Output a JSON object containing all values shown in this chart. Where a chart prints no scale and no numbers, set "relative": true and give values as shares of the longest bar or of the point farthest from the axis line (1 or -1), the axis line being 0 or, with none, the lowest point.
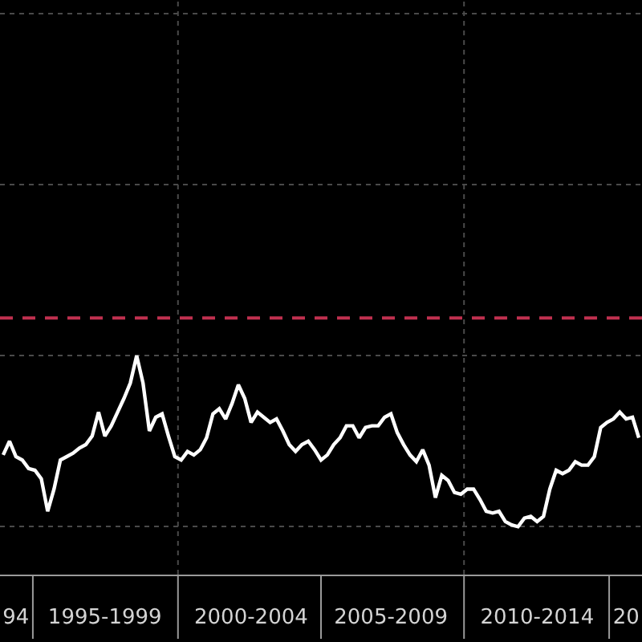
{
  "chart_data": {
    "type": "line",
    "relative": true,
    "categories": [
      null,
      null,
      "94",
      null,
      null,
      null,
      null,
      null,
      null,
      null,
      null,
      null,
      null,
      null,
      null,
      null,
      "1995-1999",
      null,
      null,
      null,
      null,
      null,
      null,
      null,
      null,
      null,
      null,
      null,
      null,
      null,
      null,
      null,
      null,
      null,
      null,
      null,
      null,
      null,
      null,
      "2000-2004",
      null,
      null,
      null,
      null,
      null,
      null,
      null,
      null,
      null,
      null,
      null,
      null,
      null,
      null,
      null,
      null,
      null,
      null,
      null,
      null,
      null,
      "2005-2009",
      null,
      null,
      null,
      null,
      null,
      null,
      null,
      null,
      null,
      null,
      null,
      null,
      null,
      null,
      null,
      null,
      null,
      null,
      null,
      null,
      null,
      null,
      "2010-2014",
      null,
      null,
      null,
      null,
      null,
      null,
      null,
      null,
      null,
      null,
      null,
      null,
      null,
      "20",
      null,
      null
    ],
    "series": [
      {
        "color": "#ffffff",
        "values": [
          0.42,
          0.5,
          0.41,
          0.39,
          0.34,
          0.33,
          0.28,
          0.09,
          0.22,
          0.39,
          0.41,
          0.43,
          0.46,
          0.48,
          0.53,
          0.67,
          0.53,
          0.59,
          0.67,
          0.75,
          0.84,
          1.0,
          0.84,
          0.56,
          0.64,
          0.66,
          0.53,
          0.41,
          0.39,
          0.44,
          0.42,
          0.45,
          0.52,
          0.66,
          0.69,
          0.63,
          0.72,
          0.83,
          0.75,
          0.61,
          0.67,
          0.64,
          0.61,
          0.63,
          0.56,
          0.48,
          0.44,
          0.48,
          0.5,
          0.45,
          0.39,
          0.42,
          0.48,
          0.52,
          0.59,
          0.59,
          0.52,
          0.58,
          0.59,
          0.59,
          0.64,
          0.66,
          0.55,
          0.48,
          0.42,
          0.38,
          0.45,
          0.36,
          0.17,
          0.3,
          0.27,
          0.2,
          0.19,
          0.22,
          0.22,
          0.16,
          0.09,
          0.08,
          0.09,
          0.03,
          0.01,
          0.0,
          0.05,
          0.06,
          0.03,
          0.06,
          0.22,
          0.33,
          0.31,
          0.33,
          0.38,
          0.36,
          0.36,
          0.41,
          0.58,
          0.61,
          0.63,
          0.67,
          0.63,
          0.64,
          0.52
        ]
      }
    ],
    "ref_lines": [
      {
        "axis": "y",
        "value": 1.22,
        "color": "#c0304f",
        "line_style": "dashed"
      }
    ],
    "grid": true
  }
}
